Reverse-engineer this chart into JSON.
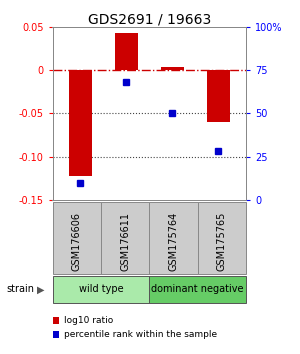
{
  "title": "GDS2691 / 19663",
  "samples": [
    "GSM176606",
    "GSM176611",
    "GSM175764",
    "GSM175765"
  ],
  "log10_ratio": [
    -0.122,
    0.042,
    0.003,
    -0.06
  ],
  "percentile_rank": [
    10.0,
    68.0,
    50.0,
    28.0
  ],
  "ylim_left": [
    -0.15,
    0.05
  ],
  "ylim_right": [
    0,
    100
  ],
  "bar_color": "#cc0000",
  "dot_color": "#0000cc",
  "groups": [
    {
      "label": "wild type",
      "start": 0,
      "end": 2,
      "color": "#aaeaaa"
    },
    {
      "label": "dominant negative",
      "start": 2,
      "end": 4,
      "color": "#66cc66"
    }
  ],
  "strain_label": "strain",
  "legend_red": "log10 ratio",
  "legend_blue": "percentile rank within the sample",
  "hline_color": "#cc0000",
  "dotted_line_color": "#444444",
  "bar_width": 0.5,
  "sample_box_color": "#cccccc",
  "sample_box_edge": "#888888",
  "fig_width": 3.0,
  "fig_height": 3.54,
  "dpi": 100
}
